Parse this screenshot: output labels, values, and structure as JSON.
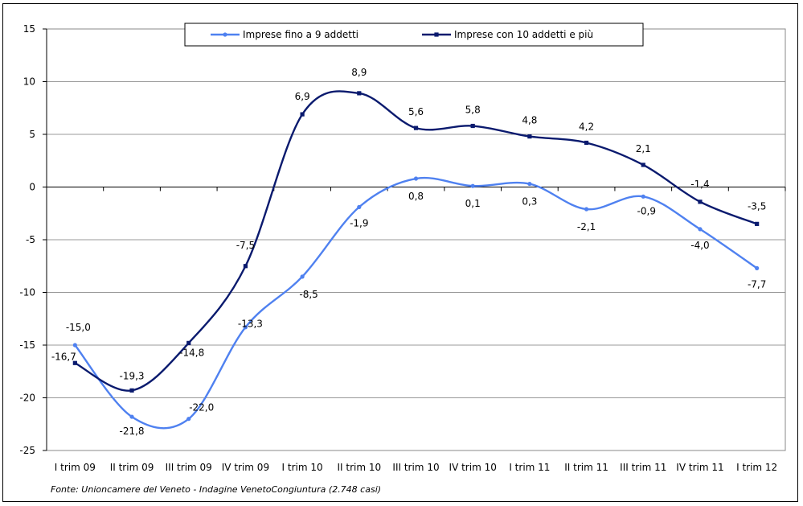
{
  "chart_data": {
    "type": "line",
    "categories": [
      "I trim 09",
      "II trim 09",
      "III trim 09",
      "IV trim 09",
      "I trim 10",
      "II trim 10",
      "III trim 10",
      "IV trim 10",
      "I trim 11",
      "II trim 11",
      "III trim 11",
      "IV trim 11",
      "I trim 12"
    ],
    "series": [
      {
        "name": "Imprese fino a 9 addetti",
        "color": "#4F81F0",
        "values": [
          -15.0,
          -21.8,
          -22.0,
          -13.3,
          -8.5,
          -1.9,
          0.8,
          0.1,
          0.3,
          -2.1,
          -0.9,
          -4.0,
          -7.7
        ],
        "labels": [
          "-15,0",
          "-21,8",
          "-22,0",
          "-13,3",
          "-8,5",
          "-1,9",
          "0,8",
          "0,1",
          "0,3",
          "-2,1",
          "-0,9",
          "-4,0",
          "-7,7"
        ]
      },
      {
        "name": "Imprese con 10 addetti e più",
        "color": "#0A1A6E",
        "values": [
          -16.7,
          -19.3,
          -14.8,
          -7.5,
          6.9,
          8.9,
          5.6,
          5.8,
          4.8,
          4.2,
          2.1,
          -1.4,
          -3.5
        ],
        "labels": [
          "-16,7",
          "-19,3",
          "-14,8",
          "-7,5",
          "6,9",
          "8,9",
          "5,6",
          "5,8",
          "4,8",
          "4,2",
          "2,1",
          "-1,4",
          "-3,5"
        ]
      }
    ],
    "ylim": [
      -25,
      15
    ],
    "yticks": [
      15,
      10,
      5,
      0,
      -5,
      -10,
      -15,
      -20,
      -25
    ],
    "grid": true,
    "legend": "top"
  },
  "source": "Fonte: Unioncamere del Veneto - Indagine VenetoCongiuntura (2.748 casi)"
}
